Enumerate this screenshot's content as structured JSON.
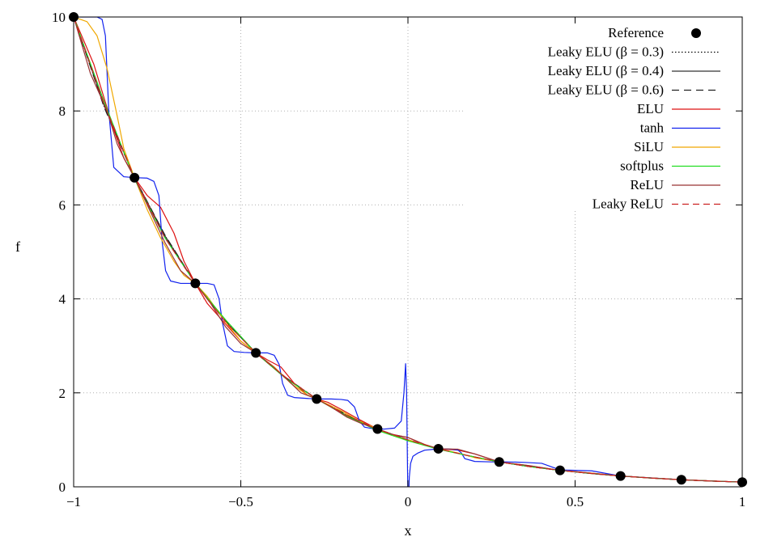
{
  "chart_data": {
    "type": "line",
    "title": "",
    "xlabel": "x",
    "ylabel": "f",
    "xlim": [
      -1,
      1
    ],
    "ylim": [
      0,
      10
    ],
    "x_ticks": [
      -1,
      -0.5,
      0,
      0.5,
      1
    ],
    "x_tick_labels": [
      "−1",
      "−0.5",
      "0",
      "0.5",
      "1"
    ],
    "y_ticks": [
      0,
      2,
      4,
      6,
      8,
      10
    ],
    "y_tick_labels": [
      "0",
      "2",
      "4",
      "6",
      "8",
      "10"
    ],
    "grid": true,
    "legend_position": "top-right",
    "reference": {
      "name": "Reference",
      "x": [
        -1.0,
        -0.818,
        -0.636,
        -0.455,
        -0.273,
        -0.091,
        0.091,
        0.273,
        0.455,
        0.636,
        0.818,
        1.0
      ],
      "y": [
        10.0,
        6.58,
        4.33,
        2.85,
        1.87,
        1.23,
        0.81,
        0.53,
        0.35,
        0.23,
        0.15,
        0.1
      ]
    },
    "series": [
      {
        "name": "Leaky ELU (β = 0.3)",
        "color": "#000000",
        "dash": "1.5,2.5",
        "width": 1.2,
        "x": [
          -1.0,
          -0.909,
          -0.818,
          -0.727,
          -0.636,
          -0.545,
          -0.455,
          -0.364,
          -0.273,
          -0.182,
          -0.091,
          0.0,
          0.091,
          0.182,
          0.273,
          0.364,
          0.455,
          0.545,
          0.636,
          0.727,
          0.818,
          0.909,
          1.0
        ],
        "y": [
          10.0,
          8.1,
          6.58,
          5.35,
          4.33,
          3.52,
          2.85,
          2.31,
          1.87,
          1.52,
          1.23,
          1.0,
          0.81,
          0.66,
          0.53,
          0.43,
          0.35,
          0.285,
          0.23,
          0.187,
          0.15,
          0.123,
          0.1
        ]
      },
      {
        "name": "Leaky ELU (β = 0.4)",
        "color": "#333333",
        "dash": "",
        "width": 1.2,
        "x": [
          -1.0,
          -0.909,
          -0.818,
          -0.727,
          -0.636,
          -0.545,
          -0.455,
          -0.364,
          -0.273,
          -0.182,
          -0.091,
          0.0,
          0.091,
          0.182,
          0.273,
          0.364,
          0.455,
          0.545,
          0.636,
          0.727,
          0.818,
          0.909,
          1.0
        ],
        "y": [
          10.0,
          8.12,
          6.58,
          5.34,
          4.33,
          3.51,
          2.85,
          2.3,
          1.87,
          1.51,
          1.23,
          1.0,
          0.81,
          0.66,
          0.53,
          0.43,
          0.35,
          0.285,
          0.23,
          0.187,
          0.15,
          0.123,
          0.1
        ]
      },
      {
        "name": "Leaky ELU (β = 0.6)",
        "color": "#222222",
        "dash": "9,6",
        "width": 1.2,
        "x": [
          -1.0,
          -0.909,
          -0.818,
          -0.727,
          -0.636,
          -0.545,
          -0.455,
          -0.364,
          -0.273,
          -0.182,
          -0.091,
          0.0,
          0.091,
          0.182,
          0.273,
          0.364,
          0.455,
          0.545,
          0.636,
          0.727,
          0.818,
          0.909,
          1.0
        ],
        "y": [
          10.0,
          8.08,
          6.58,
          5.36,
          4.33,
          3.53,
          2.85,
          2.32,
          1.87,
          1.53,
          1.23,
          1.0,
          0.81,
          0.66,
          0.53,
          0.43,
          0.35,
          0.285,
          0.23,
          0.187,
          0.15,
          0.123,
          0.1
        ]
      },
      {
        "name": "ELU",
        "color": "#dd1111",
        "dash": "",
        "width": 1.2,
        "x": [
          -1.0,
          -0.94,
          -0.88,
          -0.85,
          -0.818,
          -0.78,
          -0.74,
          -0.7,
          -0.67,
          -0.636,
          -0.6,
          -0.55,
          -0.5,
          -0.455,
          -0.42,
          -0.38,
          -0.34,
          -0.3,
          -0.273,
          -0.24,
          -0.2,
          -0.15,
          -0.091,
          -0.05,
          0.0,
          0.05,
          0.091,
          0.15,
          0.2,
          0.273,
          0.35,
          0.455,
          0.55,
          0.636,
          0.727,
          0.818,
          0.909,
          1.0
        ],
        "y": [
          10.0,
          9.0,
          7.6,
          7.0,
          6.58,
          6.2,
          5.95,
          5.4,
          4.8,
          4.33,
          3.9,
          3.5,
          3.1,
          2.85,
          2.7,
          2.55,
          2.2,
          1.95,
          1.87,
          1.8,
          1.65,
          1.45,
          1.23,
          1.12,
          1.05,
          0.9,
          0.81,
          0.78,
          0.7,
          0.53,
          0.46,
          0.35,
          0.29,
          0.23,
          0.19,
          0.15,
          0.125,
          0.1
        ]
      },
      {
        "name": "tanh",
        "color": "#1122ee",
        "dash": "",
        "width": 1.2,
        "x": [
          -1.0,
          -0.95,
          -0.93,
          -0.915,
          -0.905,
          -0.895,
          -0.88,
          -0.85,
          -0.818,
          -0.78,
          -0.76,
          -0.745,
          -0.735,
          -0.725,
          -0.71,
          -0.68,
          -0.636,
          -0.6,
          -0.58,
          -0.565,
          -0.555,
          -0.54,
          -0.52,
          -0.49,
          -0.455,
          -0.42,
          -0.4,
          -0.385,
          -0.375,
          -0.36,
          -0.34,
          -0.3,
          -0.273,
          -0.23,
          -0.2,
          -0.18,
          -0.16,
          -0.145,
          -0.13,
          -0.1,
          -0.07,
          -0.04,
          -0.02,
          -0.012,
          -0.007,
          -0.004,
          -0.002,
          0.0,
          0.002,
          0.004,
          0.008,
          0.015,
          0.03,
          0.05,
          0.08,
          0.1,
          0.13,
          0.15,
          0.16,
          0.17,
          0.2,
          0.25,
          0.3,
          0.35,
          0.4,
          0.455,
          0.5,
          0.55,
          0.636,
          0.727,
          0.818,
          0.909,
          1.0
        ],
        "y": [
          10.0,
          10.0,
          10.0,
          9.95,
          9.6,
          8.0,
          6.8,
          6.6,
          6.58,
          6.57,
          6.5,
          6.2,
          5.2,
          4.6,
          4.38,
          4.33,
          4.33,
          4.33,
          4.3,
          4.0,
          3.5,
          3.0,
          2.88,
          2.86,
          2.85,
          2.85,
          2.8,
          2.6,
          2.2,
          1.95,
          1.9,
          1.88,
          1.87,
          1.87,
          1.86,
          1.84,
          1.7,
          1.4,
          1.27,
          1.23,
          1.23,
          1.25,
          1.4,
          2.0,
          2.62,
          2.0,
          0.8,
          -0.3,
          -0.3,
          0.2,
          0.5,
          0.65,
          0.72,
          0.78,
          0.8,
          0.81,
          0.8,
          0.78,
          0.72,
          0.6,
          0.54,
          0.53,
          0.53,
          0.52,
          0.5,
          0.36,
          0.35,
          0.34,
          0.23,
          0.19,
          0.15,
          0.123,
          0.1
        ]
      },
      {
        "name": "SiLU",
        "color": "#f0a800",
        "dash": "",
        "width": 1.2,
        "x": [
          -1.0,
          -0.96,
          -0.93,
          -0.9,
          -0.87,
          -0.85,
          -0.818,
          -0.78,
          -0.74,
          -0.7,
          -0.67,
          -0.636,
          -0.6,
          -0.55,
          -0.5,
          -0.455,
          -0.4,
          -0.35,
          -0.3,
          -0.273,
          -0.2,
          -0.15,
          -0.091,
          -0.05,
          0.0,
          0.05,
          0.091,
          0.15,
          0.2,
          0.273,
          0.35,
          0.455,
          0.55,
          0.636,
          0.727,
          0.818,
          0.909,
          1.0
        ],
        "y": [
          10.0,
          9.9,
          9.6,
          8.9,
          7.9,
          7.2,
          6.58,
          5.9,
          5.3,
          4.8,
          4.5,
          4.33,
          4.05,
          3.55,
          3.1,
          2.85,
          2.55,
          2.2,
          1.95,
          1.87,
          1.62,
          1.42,
          1.23,
          1.1,
          1.0,
          0.9,
          0.81,
          0.72,
          0.62,
          0.53,
          0.45,
          0.35,
          0.29,
          0.23,
          0.187,
          0.15,
          0.123,
          0.1
        ]
      },
      {
        "name": "softplus",
        "color": "#22dd22",
        "dash": "",
        "width": 1.2,
        "x": [
          -1.0,
          -0.909,
          -0.818,
          -0.727,
          -0.636,
          -0.545,
          -0.455,
          -0.364,
          -0.273,
          -0.182,
          -0.091,
          0.0,
          0.091,
          0.182,
          0.273,
          0.364,
          0.455,
          0.545,
          0.636,
          0.727,
          0.818,
          0.909,
          1.0
        ],
        "y": [
          10.0,
          8.2,
          6.55,
          5.3,
          4.33,
          3.55,
          2.85,
          2.3,
          1.87,
          1.5,
          1.2,
          0.98,
          0.8,
          0.66,
          0.53,
          0.43,
          0.35,
          0.285,
          0.23,
          0.187,
          0.15,
          0.123,
          0.1
        ]
      },
      {
        "name": "ReLU",
        "color": "#993333",
        "dash": "",
        "width": 1.2,
        "x": [
          -1.0,
          -0.95,
          -0.9,
          -0.87,
          -0.85,
          -0.818,
          -0.78,
          -0.727,
          -0.68,
          -0.636,
          -0.59,
          -0.545,
          -0.5,
          -0.455,
          -0.41,
          -0.364,
          -0.32,
          -0.273,
          -0.23,
          -0.182,
          -0.14,
          -0.091,
          -0.05,
          0.0,
          0.05,
          0.091,
          0.15,
          0.2,
          0.273,
          0.364,
          0.455,
          0.545,
          0.636,
          0.727,
          0.818,
          0.909,
          1.0
        ],
        "y": [
          10.0,
          8.8,
          8.0,
          7.3,
          7.0,
          6.58,
          6.0,
          5.2,
          4.6,
          4.33,
          3.9,
          3.4,
          3.05,
          2.85,
          2.6,
          2.3,
          2.0,
          1.87,
          1.7,
          1.48,
          1.35,
          1.23,
          1.12,
          1.05,
          0.9,
          0.81,
          0.8,
          0.7,
          0.53,
          0.45,
          0.35,
          0.29,
          0.23,
          0.187,
          0.15,
          0.123,
          0.1
        ]
      },
      {
        "name": "Leaky ReLU",
        "color": "#cc2222",
        "dash": "8,5",
        "width": 1.2,
        "x": [
          -1.0,
          -0.909,
          -0.818,
          -0.727,
          -0.636,
          -0.545,
          -0.455,
          -0.364,
          -0.273,
          -0.182,
          -0.091,
          0.0,
          0.091,
          0.182,
          0.273,
          0.364,
          0.455,
          0.545,
          0.636,
          0.727,
          0.818,
          0.909,
          1.0
        ],
        "y": [
          10.0,
          8.15,
          6.58,
          5.3,
          4.33,
          3.5,
          2.85,
          2.32,
          1.87,
          1.52,
          1.23,
          1.0,
          0.81,
          0.66,
          0.53,
          0.43,
          0.35,
          0.285,
          0.23,
          0.187,
          0.15,
          0.123,
          0.1
        ]
      }
    ]
  }
}
